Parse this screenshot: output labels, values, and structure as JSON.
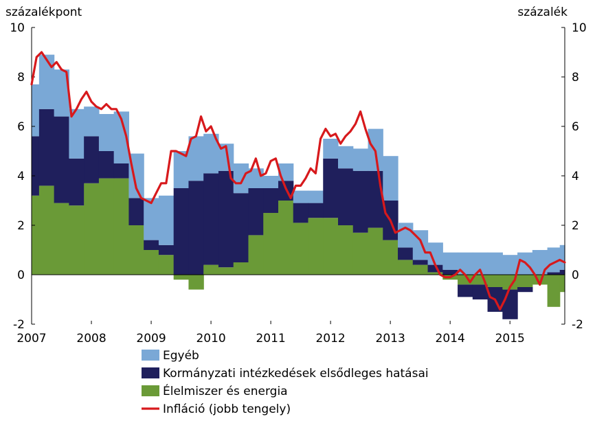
{
  "chart_data": {
    "type": "area",
    "left_unit": "százalékpont",
    "right_unit": "százalék",
    "ylim": [
      -2,
      10
    ],
    "y_ticks": [
      "-2",
      "0",
      "2",
      "4",
      "6",
      "8",
      "10"
    ],
    "x_ticks": [
      "2007",
      "2008",
      "2009",
      "2010",
      "2011",
      "2012",
      "2013",
      "2014",
      "2015"
    ],
    "x_range": [
      2007.0,
      2015.917
    ],
    "grid": false,
    "legend_position": "bottom",
    "colors": {
      "egyeb": "#7aa8d6",
      "kormanyzati": "#1f1f5c",
      "elelmiszer": "#6a9a37",
      "inflacio": "#d7191c"
    },
    "series": [
      {
        "key": "elelmiszer",
        "name": "Élelmiszer és energia",
        "x": [
          2007.0,
          2007.25,
          2007.5,
          2007.75,
          2008.0,
          2008.25,
          2008.5,
          2008.75,
          2009.0,
          2009.25,
          2009.5,
          2009.75,
          2010.0,
          2010.25,
          2010.5,
          2010.75,
          2011.0,
          2011.25,
          2011.5,
          2011.75,
          2012.0,
          2012.25,
          2012.5,
          2012.75,
          2013.0,
          2013.25,
          2013.5,
          2013.75,
          2014.0,
          2014.25,
          2014.5,
          2014.75,
          2015.0,
          2015.25,
          2015.5,
          2015.75,
          2015.917
        ],
        "values": [
          3.2,
          3.6,
          2.9,
          2.8,
          3.7,
          3.9,
          3.9,
          2.0,
          1.0,
          0.8,
          -0.2,
          -0.6,
          0.4,
          0.3,
          0.5,
          1.6,
          2.5,
          3.0,
          2.1,
          2.3,
          2.3,
          2.0,
          1.7,
          1.9,
          1.4,
          0.6,
          0.4,
          0.1,
          -0.2,
          -0.4,
          -0.4,
          -0.5,
          -0.6,
          -0.5,
          -0.4,
          -1.3,
          -0.7
        ]
      },
      {
        "key": "kormanyzati",
        "name": "Kormányzati intézkedések elsődleges hatásai",
        "x": [
          2007.0,
          2007.25,
          2007.5,
          2007.75,
          2008.0,
          2008.25,
          2008.5,
          2008.75,
          2009.0,
          2009.25,
          2009.5,
          2009.75,
          2010.0,
          2010.25,
          2010.5,
          2010.75,
          2011.0,
          2011.25,
          2011.5,
          2011.75,
          2012.0,
          2012.25,
          2012.5,
          2012.75,
          2013.0,
          2013.25,
          2013.5,
          2013.75,
          2014.0,
          2014.25,
          2014.5,
          2014.75,
          2015.0,
          2015.25,
          2015.5,
          2015.75,
          2015.917
        ],
        "values": [
          2.4,
          3.1,
          3.5,
          1.9,
          1.9,
          1.1,
          0.6,
          1.1,
          0.4,
          0.4,
          3.5,
          3.8,
          3.7,
          3.9,
          2.8,
          1.9,
          1.0,
          0.8,
          0.8,
          0.6,
          2.4,
          2.3,
          2.5,
          2.3,
          1.6,
          0.5,
          0.2,
          0.3,
          0.2,
          -0.5,
          -0.6,
          -1.0,
          -1.2,
          -0.2,
          0.0,
          0.1,
          0.2
        ]
      },
      {
        "key": "egyeb",
        "name": "Egyéb",
        "x": [
          2007.0,
          2007.25,
          2007.5,
          2007.75,
          2008.0,
          2008.25,
          2008.5,
          2008.75,
          2009.0,
          2009.25,
          2009.5,
          2009.75,
          2010.0,
          2010.25,
          2010.5,
          2010.75,
          2011.0,
          2011.25,
          2011.5,
          2011.75,
          2012.0,
          2012.25,
          2012.5,
          2012.75,
          2013.0,
          2013.25,
          2013.5,
          2013.75,
          2014.0,
          2014.25,
          2014.5,
          2014.75,
          2015.0,
          2015.25,
          2015.5,
          2015.75,
          2015.917
        ],
        "values": [
          2.1,
          2.2,
          1.9,
          2.0,
          1.2,
          1.5,
          2.1,
          1.8,
          1.7,
          2.0,
          1.5,
          1.8,
          1.6,
          1.1,
          1.2,
          0.8,
          0.5,
          0.7,
          0.5,
          0.5,
          0.8,
          0.9,
          0.9,
          1.7,
          1.8,
          1.0,
          1.2,
          0.9,
          0.7,
          0.9,
          0.9,
          0.9,
          0.8,
          0.9,
          1.0,
          1.0,
          1.0
        ]
      },
      {
        "key": "inflacio",
        "name": "Infláció (jobb tengely)",
        "x": [
          2007.0,
          2007.083,
          2007.167,
          2007.25,
          2007.333,
          2007.417,
          2007.5,
          2007.583,
          2007.667,
          2007.75,
          2007.833,
          2007.917,
          2008.0,
          2008.083,
          2008.167,
          2008.25,
          2008.333,
          2008.417,
          2008.5,
          2008.583,
          2008.667,
          2008.75,
          2008.833,
          2008.917,
          2009.0,
          2009.083,
          2009.167,
          2009.25,
          2009.333,
          2009.417,
          2009.5,
          2009.583,
          2009.667,
          2009.75,
          2009.833,
          2009.917,
          2010.0,
          2010.083,
          2010.167,
          2010.25,
          2010.333,
          2010.417,
          2010.5,
          2010.583,
          2010.667,
          2010.75,
          2010.833,
          2010.917,
          2011.0,
          2011.083,
          2011.167,
          2011.25,
          2011.333,
          2011.417,
          2011.5,
          2011.583,
          2011.667,
          2011.75,
          2011.833,
          2011.917,
          2012.0,
          2012.083,
          2012.167,
          2012.25,
          2012.333,
          2012.417,
          2012.5,
          2012.583,
          2012.667,
          2012.75,
          2012.833,
          2012.917,
          2013.0,
          2013.083,
          2013.167,
          2013.25,
          2013.333,
          2013.417,
          2013.5,
          2013.583,
          2013.667,
          2013.75,
          2013.833,
          2013.917,
          2014.0,
          2014.083,
          2014.167,
          2014.25,
          2014.333,
          2014.417,
          2014.5,
          2014.583,
          2014.667,
          2014.75,
          2014.833,
          2014.917,
          2015.0,
          2015.083,
          2015.167,
          2015.25,
          2015.333,
          2015.417,
          2015.5,
          2015.583,
          2015.667,
          2015.75,
          2015.833,
          2015.917
        ],
        "values": [
          7.7,
          8.8,
          9.0,
          8.7,
          8.4,
          8.6,
          8.3,
          8.2,
          6.4,
          6.7,
          7.1,
          7.4,
          7.0,
          6.8,
          6.7,
          6.9,
          6.7,
          6.7,
          6.3,
          5.6,
          4.5,
          3.5,
          3.1,
          3.0,
          2.9,
          3.3,
          3.7,
          3.7,
          5.0,
          5.0,
          4.9,
          4.8,
          5.5,
          5.6,
          6.4,
          5.8,
          6.0,
          5.5,
          5.1,
          5.2,
          3.9,
          3.7,
          3.7,
          4.1,
          4.2,
          4.7,
          4.0,
          4.1,
          4.6,
          4.7,
          4.0,
          3.5,
          3.1,
          3.6,
          3.6,
          3.9,
          4.3,
          4.1,
          5.5,
          5.9,
          5.6,
          5.7,
          5.3,
          5.6,
          5.8,
          6.1,
          6.6,
          5.9,
          5.3,
          5.0,
          3.6,
          2.5,
          2.2,
          1.7,
          1.8,
          1.9,
          1.8,
          1.6,
          1.4,
          0.9,
          0.9,
          0.4,
          0.0,
          -0.1,
          -0.1,
          0.0,
          0.2,
          0.0,
          -0.3,
          0.0,
          0.2,
          -0.3,
          -0.9,
          -1.0,
          -1.4,
          -1.0,
          -0.5,
          -0.2,
          0.6,
          0.5,
          0.3,
          0.0,
          -0.4,
          0.2,
          0.4,
          0.5,
          0.6,
          0.5
        ]
      }
    ]
  }
}
